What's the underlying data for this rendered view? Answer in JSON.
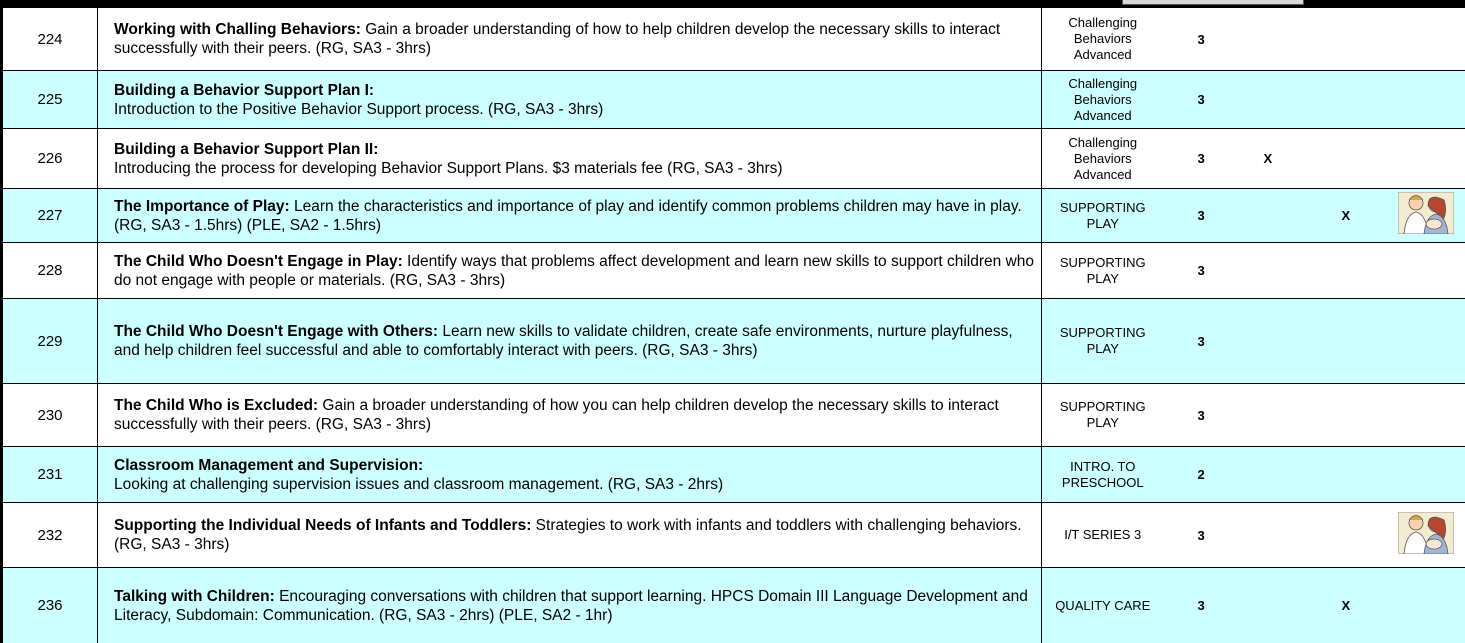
{
  "table": {
    "rows": [
      {
        "number": "224",
        "title": "Working with Challing Behaviors:",
        "description": "Gain a broader understanding of how to help children develop the necessary skills to interact successfully with their peers. (RG, SA3 - 3hrs)",
        "category": "Challenging Behaviors Advanced",
        "credits": "3"
      },
      {
        "number": "225",
        "title": "Building a Behavior Support Plan I:",
        "description": "Introduction to the Positive Behavior Support process.  (RG, SA3 - 3hrs)",
        "category": "Challenging Behaviors Advanced",
        "credits": "3"
      },
      {
        "number": "226",
        "title": "Building a Behavior Support Plan II:",
        "description": "Introducing the process for developing Behavior Support Plans. $3 materials fee (RG, SA3 - 3hrs)",
        "category": "Challenging Behaviors Advanced",
        "credits": "3",
        "x_column_1": "X"
      },
      {
        "number": "227",
        "title": "The Importance of Play:",
        "description": "Learn the characteristics and importance of play and identify common problems children may have in play.  (RG, SA3 - 1.5hrs) (PLE, SA2 - 1.5hrs)",
        "category": "SUPPORTING PLAY",
        "credits": "3",
        "x_column_2": "X"
      },
      {
        "number": "228",
        "title": "The Child Who Doesn't Engage in Play:",
        "description": "Identify ways that problems affect development and learn new skills to support children who do not engage with people or materials.  (RG, SA3 - 3hrs)",
        "category": "SUPPORTING PLAY",
        "credits": "3"
      },
      {
        "number": "229",
        "title": "The Child Who Doesn't Engage with Others:",
        "description": "Learn new skills to validate children, create safe environments, nurture playfulness, and help children feel successful and able to comfortably interact with peers.  (RG, SA3 - 3hrs)",
        "category": "SUPPORTING PLAY",
        "credits": "3"
      },
      {
        "number": "230",
        "title": "The Child Who is Excluded:",
        "description": "Gain a broader understanding of how you can help children develop the necessary skills to interact successfully with their peers.  (RG, SA3 - 3hrs)",
        "category": "SUPPORTING PLAY",
        "credits": "3"
      },
      {
        "number": "231",
        "title": "Classroom Management and Supervision:",
        "description": "Looking at challenging supervision issues and classroom management. (RG, SA3 - 2hrs)",
        "category": "INTRO. TO PRESCHOOL",
        "credits": "2"
      },
      {
        "number": "232",
        "title": "Supporting the Individual Needs of Infants and Toddlers:",
        "description": "Strategies to work with infants and toddlers with challenging behaviors.  (RG, SA3 - 3hrs)",
        "category": "I/T SERIES 3",
        "credits": "3"
      },
      {
        "number": "236",
        "title": "Talking with Children:",
        "description": "Encouraging conversations with children that support learning.  HPCS Domain III Language Development and Literacy, Subdomain: Communication. (RG, SA3 - 2hrs) (PLE, SA2 - 1hr)",
        "category": "QUALITY CARE",
        "credits": "3",
        "x_column_2": "X"
      }
    ]
  }
}
